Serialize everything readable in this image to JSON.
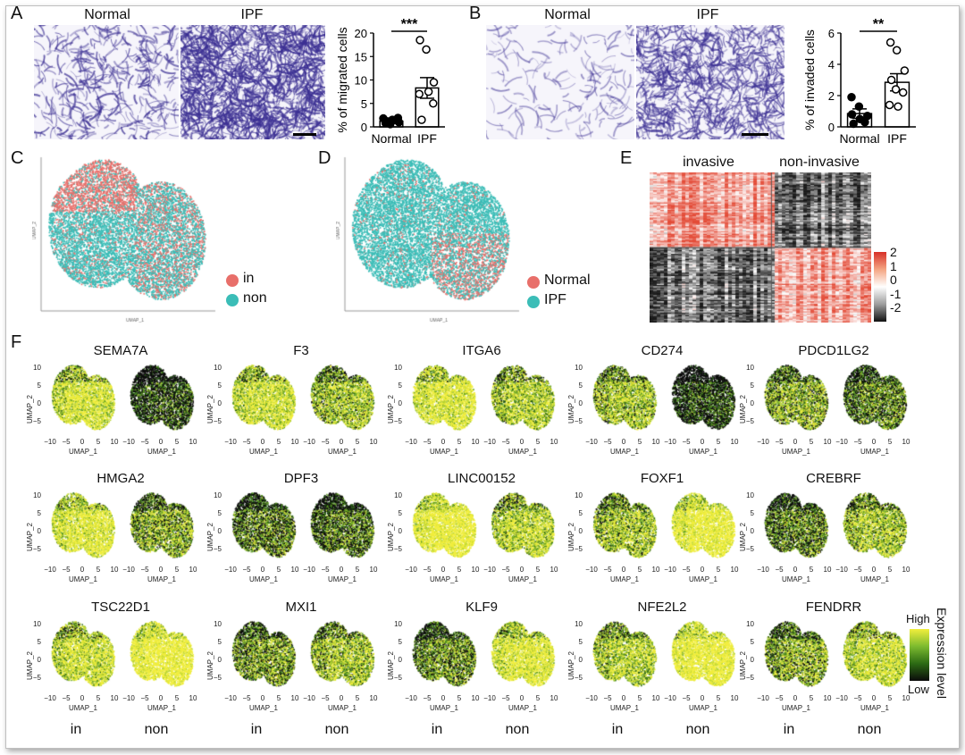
{
  "panels": {
    "A": {
      "label": "A",
      "image_headers": [
        "Normal",
        "IPF"
      ],
      "chart_title": "",
      "ylabel": "% of migrated cells",
      "categories": [
        "Normal",
        "IPF"
      ],
      "y_ticks": [
        "0",
        "5",
        "10",
        "15",
        "20"
      ],
      "significance": "***"
    },
    "B": {
      "label": "B",
      "image_headers": [
        "Normal",
        "IPF"
      ],
      "ylabel": "% of invaded cells",
      "categories": [
        "Normal",
        "IPF"
      ],
      "y_ticks": [
        "0",
        "2",
        "4",
        "6"
      ],
      "significance": "**"
    },
    "C": {
      "label": "C",
      "legend": [
        "in",
        "non"
      ],
      "xlabel": "UMAP_1",
      "ylabel": "UMAP_2"
    },
    "D": {
      "label": "D",
      "legend": [
        "Normal",
        "IPF"
      ],
      "xlabel": "UMAP_1",
      "ylabel": "UMAP_2"
    },
    "E": {
      "label": "E",
      "col_groups": [
        "invasive",
        "non-invasive"
      ],
      "scale_ticks": [
        "2",
        "1",
        "0",
        "-1",
        "-2"
      ]
    },
    "F": {
      "label": "F",
      "genes": [
        "SEMA7A",
        "F3",
        "ITGA6",
        "CD274",
        "PDCD1LG2",
        "HMGA2",
        "DPF3",
        "LINC00152",
        "FOXF1",
        "CREBRF",
        "TSC22D1",
        "MXI1",
        "KLF9",
        "NFE2L2",
        "FENDRR"
      ],
      "xlabel": "UMAP_1",
      "ylabel": "UMAP_2",
      "x_ticks": [
        "−10",
        "−5",
        "0",
        "5",
        "10"
      ],
      "y_ticks": [
        "10",
        "5",
        "0",
        "−5"
      ],
      "bottom_labels": [
        "in",
        "non"
      ],
      "legend_high": "High",
      "legend_low": "Low",
      "legend_title": "Expression level"
    }
  },
  "chart_data": [
    {
      "type": "bar",
      "title": "",
      "categories": [
        "Normal",
        "IPF"
      ],
      "values": [
        1.2,
        8.3
      ],
      "errors": [
        0.5,
        2.2
      ],
      "points": [
        [
          1.8,
          1.5,
          1.0,
          0.8,
          0.6,
          1.9,
          1.2
        ],
        [
          18.5,
          16.5,
          9.5,
          7.0,
          7.5,
          5.0,
          1.5
        ]
      ],
      "ylabel": "% of migrated cells",
      "ylim": [
        0,
        20
      ],
      "significance": "***"
    },
    {
      "type": "bar",
      "title": "",
      "categories": [
        "Normal",
        "IPF"
      ],
      "values": [
        0.85,
        2.85
      ],
      "errors": [
        0.3,
        0.55
      ],
      "points": [
        [
          1.9,
          1.3,
          0.7,
          0.8,
          0.5,
          0.3,
          0.2
        ],
        [
          5.4,
          4.9,
          3.6,
          3.0,
          2.4,
          2.2,
          1.4,
          1.3
        ]
      ],
      "ylabel": "% of invaded cells",
      "ylim": [
        0,
        6
      ],
      "significance": "**"
    }
  ],
  "colors": {
    "stain": "#3b2f93",
    "in": "#e86f6a",
    "non": "#3bbdb7",
    "heat_high": "#e64b35",
    "heat_low": "#111111",
    "expr_high": "#f1ee3c",
    "expr_mid": "#6cae2e",
    "expr_low": "#0b0b0b"
  }
}
